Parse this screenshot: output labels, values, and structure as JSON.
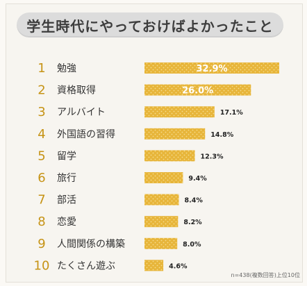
{
  "chart_data": {
    "type": "bar",
    "title": "学生時代にやっておけばよかったこと",
    "ranks": [
      "1",
      "2",
      "3",
      "4",
      "5",
      "6",
      "7",
      "8",
      "9",
      "10"
    ],
    "categories": [
      "勉強",
      "資格取得",
      "アルバイト",
      "外国語の習得",
      "留学",
      "旅行",
      "部活",
      "恋愛",
      "人間関係の構築",
      "たくさん遊ぶ"
    ],
    "values": [
      32.9,
      26.0,
      17.1,
      14.8,
      12.3,
      9.4,
      8.4,
      8.2,
      8.0,
      4.6
    ],
    "value_labels": [
      "32.9%",
      "26.0%",
      "17.1%",
      "14.8%",
      "12.3%",
      "9.4%",
      "8.4%",
      "8.2%",
      "8.0%",
      "4.6%"
    ],
    "xlim": [
      0,
      32.9
    ],
    "note": "n=438(複数回答)上位10位",
    "colors": {
      "bar": "#e7b53a",
      "dot": "#f6dc8c",
      "rank": "#c69315",
      "title_bg": "#dcdcdc"
    }
  }
}
